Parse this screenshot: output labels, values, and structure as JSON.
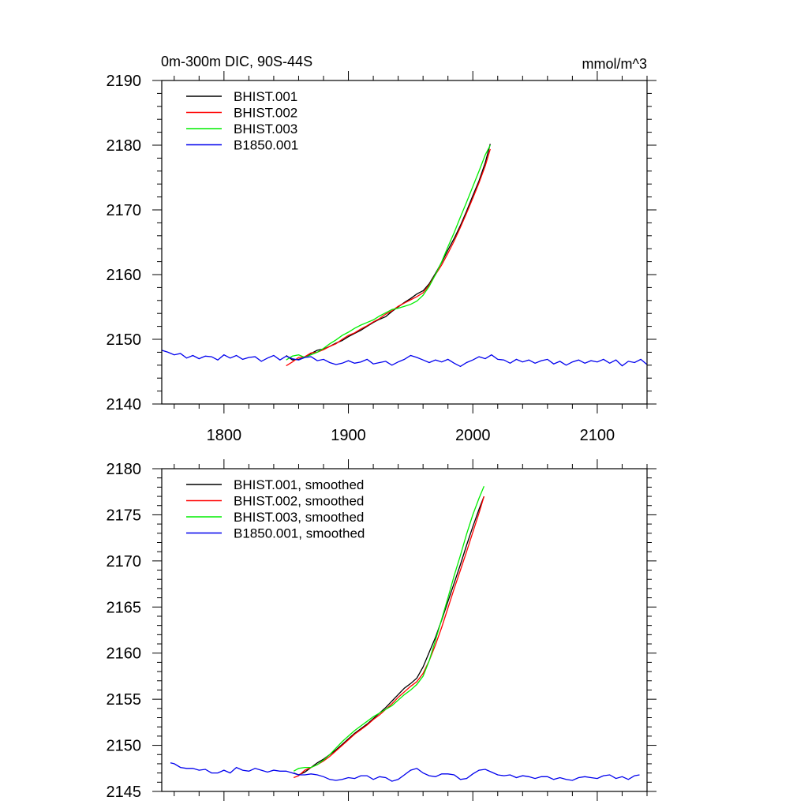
{
  "figure": {
    "left_title": "0m-300m DIC, 90S-44S",
    "right_title": "mmol/m^3"
  },
  "chart_data": [
    {
      "type": "line",
      "title": "0m-300m DIC, 90S-44S",
      "units": "mmol/m^3",
      "xlim": [
        1750,
        2140
      ],
      "ylim": [
        2140,
        2190
      ],
      "xticks": [
        1800,
        1900,
        2000,
        2100
      ],
      "yticks": [
        2140,
        2150,
        2160,
        2170,
        2180,
        2190
      ],
      "grid": false,
      "legend": "top-left",
      "series": [
        {
          "name": "BHIST.001",
          "color": "#000000",
          "x": [
            1850,
            1855,
            1860,
            1865,
            1870,
            1875,
            1880,
            1885,
            1890,
            1895,
            1900,
            1905,
            1910,
            1915,
            1920,
            1925,
            1930,
            1935,
            1940,
            1945,
            1950,
            1955,
            1960,
            1965,
            1970,
            1975,
            1980,
            1985,
            1990,
            1995,
            2000,
            2005,
            2010,
            2014
          ],
          "y": [
            2147.5,
            2146.8,
            2146.9,
            2147.2,
            2147.8,
            2148.3,
            2148.5,
            2148.9,
            2149.4,
            2149.8,
            2150.4,
            2150.9,
            2151.4,
            2152.0,
            2152.6,
            2153.1,
            2153.5,
            2154.3,
            2155.0,
            2155.7,
            2156.3,
            2157.0,
            2157.5,
            2158.6,
            2160.2,
            2161.9,
            2163.8,
            2165.6,
            2167.6,
            2169.8,
            2172.2,
            2174.5,
            2177.3,
            2180.2
          ]
        },
        {
          "name": "BHIST.002",
          "color": "#ff0000",
          "x": [
            1850,
            1855,
            1860,
            1865,
            1870,
            1875,
            1880,
            1885,
            1890,
            1895,
            1900,
            1905,
            1910,
            1915,
            1920,
            1925,
            1930,
            1935,
            1940,
            1945,
            1950,
            1955,
            1960,
            1965,
            1970,
            1975,
            1980,
            1985,
            1990,
            1995,
            2000,
            2005,
            2010,
            2014
          ],
          "y": [
            2145.9,
            2146.5,
            2147.2,
            2147.3,
            2147.9,
            2148.0,
            2148.4,
            2148.9,
            2149.3,
            2150.0,
            2150.6,
            2151.0,
            2151.6,
            2152.1,
            2152.7,
            2153.2,
            2153.9,
            2154.4,
            2155.1,
            2155.6,
            2156.1,
            2156.6,
            2157.2,
            2158.4,
            2160.0,
            2161.5,
            2163.3,
            2165.2,
            2167.3,
            2169.5,
            2171.8,
            2174.2,
            2176.8,
            2179.4
          ]
        },
        {
          "name": "BHIST.003",
          "color": "#00ee00",
          "x": [
            1850,
            1855,
            1860,
            1865,
            1870,
            1875,
            1880,
            1885,
            1890,
            1895,
            1900,
            1905,
            1910,
            1915,
            1920,
            1925,
            1930,
            1935,
            1940,
            1945,
            1950,
            1955,
            1960,
            1965,
            1970,
            1975,
            1980,
            1985,
            1990,
            1995,
            2000,
            2005,
            2010,
            2014
          ],
          "y": [
            2146.8,
            2147.4,
            2147.6,
            2147.2,
            2147.6,
            2148.0,
            2148.6,
            2149.3,
            2149.9,
            2150.6,
            2151.1,
            2151.7,
            2152.2,
            2152.6,
            2153.0,
            2153.6,
            2154.1,
            2154.6,
            2154.8,
            2155.1,
            2155.4,
            2155.9,
            2156.8,
            2158.2,
            2160.0,
            2162.0,
            2164.3,
            2166.5,
            2168.9,
            2171.2,
            2173.6,
            2176.0,
            2178.5,
            2180.0
          ]
        },
        {
          "name": "B1850.001",
          "color": "#0000ee",
          "x": [
            1750,
            1755,
            1760,
            1765,
            1770,
            1775,
            1780,
            1785,
            1790,
            1795,
            1800,
            1805,
            1810,
            1815,
            1820,
            1825,
            1830,
            1835,
            1840,
            1845,
            1850,
            1855,
            1860,
            1865,
            1870,
            1875,
            1880,
            1885,
            1890,
            1895,
            1900,
            1905,
            1910,
            1915,
            1920,
            1925,
            1930,
            1935,
            1940,
            1945,
            1950,
            1955,
            1960,
            1965,
            1970,
            1975,
            1980,
            1985,
            1990,
            1995,
            2000,
            2005,
            2010,
            2015,
            2020,
            2025,
            2030,
            2035,
            2040,
            2045,
            2050,
            2055,
            2060,
            2065,
            2070,
            2075,
            2080,
            2085,
            2090,
            2095,
            2100,
            2105,
            2110,
            2115,
            2120,
            2125,
            2130,
            2135,
            2140
          ],
          "y": [
            2148.3,
            2148.0,
            2147.6,
            2147.8,
            2147.1,
            2147.5,
            2147.0,
            2147.4,
            2147.3,
            2146.8,
            2147.6,
            2147.1,
            2147.5,
            2146.9,
            2147.2,
            2147.3,
            2146.6,
            2147.1,
            2147.5,
            2146.8,
            2147.4,
            2147.0,
            2146.8,
            2147.2,
            2147.3,
            2146.7,
            2146.9,
            2146.4,
            2146.1,
            2146.3,
            2146.7,
            2146.3,
            2146.5,
            2146.9,
            2146.2,
            2146.4,
            2146.6,
            2146.0,
            2146.5,
            2146.9,
            2147.5,
            2147.2,
            2146.8,
            2146.4,
            2146.8,
            2146.5,
            2146.9,
            2146.3,
            2145.8,
            2146.4,
            2146.8,
            2147.3,
            2147.0,
            2147.6,
            2146.9,
            2146.8,
            2146.3,
            2146.9,
            2146.5,
            2146.8,
            2146.3,
            2146.7,
            2146.9,
            2146.2,
            2146.6,
            2146.0,
            2146.5,
            2146.8,
            2146.3,
            2146.7,
            2146.5,
            2146.9,
            2146.3,
            2146.8,
            2145.9,
            2146.6,
            2146.4,
            2146.9,
            2146.1
          ]
        }
      ]
    },
    {
      "type": "line",
      "xlim": [
        1750,
        2140
      ],
      "ylim": [
        2145,
        2180
      ],
      "xticks": [
        1800,
        1900,
        2000,
        2100
      ],
      "yticks": [
        2145,
        2150,
        2155,
        2160,
        2165,
        2170,
        2175,
        2180
      ],
      "grid": false,
      "legend": "top-left",
      "series": [
        {
          "name": "BHIST.001, smoothed",
          "color": "#000000",
          "x": [
            1856,
            1860,
            1865,
            1870,
            1875,
            1880,
            1885,
            1890,
            1895,
            1900,
            1905,
            1910,
            1915,
            1920,
            1925,
            1930,
            1935,
            1940,
            1945,
            1950,
            1955,
            1960,
            1965,
            1970,
            1975,
            1980,
            1985,
            1990,
            1995,
            2000,
            2005,
            2009
          ],
          "y": [
            2147.0,
            2146.8,
            2147.1,
            2147.6,
            2148.1,
            2148.5,
            2149.0,
            2149.5,
            2150.1,
            2150.7,
            2151.3,
            2151.8,
            2152.3,
            2152.9,
            2153.5,
            2154.1,
            2154.8,
            2155.5,
            2156.2,
            2156.7,
            2157.3,
            2158.5,
            2160.1,
            2161.7,
            2163.6,
            2165.6,
            2167.6,
            2169.6,
            2171.7,
            2173.7,
            2175.6,
            2177.0
          ]
        },
        {
          "name": "BHIST.002, smoothed",
          "color": "#ff0000",
          "x": [
            1856,
            1860,
            1865,
            1870,
            1875,
            1880,
            1885,
            1890,
            1895,
            1900,
            1905,
            1910,
            1915,
            1920,
            1925,
            1930,
            1935,
            1940,
            1945,
            1950,
            1955,
            1960,
            1965,
            1970,
            1975,
            1980,
            1985,
            1990,
            1995,
            2000,
            2005,
            2009
          ],
          "y": [
            2146.5,
            2146.7,
            2147.3,
            2147.6,
            2147.9,
            2148.3,
            2148.8,
            2149.4,
            2150.0,
            2150.6,
            2151.2,
            2151.7,
            2152.2,
            2152.8,
            2153.3,
            2153.9,
            2154.5,
            2155.2,
            2155.8,
            2156.4,
            2156.9,
            2157.8,
            2159.2,
            2160.9,
            2162.8,
            2164.9,
            2167.0,
            2169.0,
            2171.0,
            2173.1,
            2175.2,
            2177.0
          ]
        },
        {
          "name": "BHIST.003, smoothed",
          "color": "#00ee00",
          "x": [
            1856,
            1860,
            1865,
            1870,
            1875,
            1880,
            1885,
            1890,
            1895,
            1900,
            1905,
            1910,
            1915,
            1920,
            1925,
            1930,
            1935,
            1940,
            1945,
            1950,
            1955,
            1960,
            1965,
            1970,
            1975,
            1980,
            1985,
            1990,
            1995,
            2000,
            2005,
            2009
          ],
          "y": [
            2147.2,
            2147.5,
            2147.6,
            2147.6,
            2147.9,
            2148.4,
            2149.0,
            2149.7,
            2150.4,
            2151.0,
            2151.6,
            2152.1,
            2152.6,
            2153.1,
            2153.5,
            2153.9,
            2154.3,
            2154.9,
            2155.5,
            2156.0,
            2156.6,
            2157.5,
            2159.2,
            2161.4,
            2163.7,
            2166.0,
            2168.4,
            2170.6,
            2172.9,
            2175.0,
            2176.8,
            2178.1
          ]
        },
        {
          "name": "B1850.001, smoothed",
          "color": "#0000ee",
          "x": [
            1757,
            1760,
            1765,
            1770,
            1775,
            1780,
            1785,
            1790,
            1795,
            1800,
            1805,
            1810,
            1815,
            1820,
            1825,
            1830,
            1835,
            1840,
            1845,
            1850,
            1855,
            1860,
            1865,
            1870,
            1875,
            1880,
            1885,
            1890,
            1895,
            1900,
            1905,
            1910,
            1915,
            1920,
            1925,
            1930,
            1935,
            1940,
            1945,
            1950,
            1955,
            1960,
            1965,
            1970,
            1975,
            1980,
            1985,
            1990,
            1995,
            2000,
            2005,
            2010,
            2015,
            2020,
            2025,
            2030,
            2035,
            2040,
            2045,
            2050,
            2055,
            2060,
            2065,
            2070,
            2075,
            2080,
            2085,
            2090,
            2095,
            2100,
            2105,
            2110,
            2115,
            2120,
            2125,
            2130,
            2134
          ],
          "y": [
            2148.1,
            2148.0,
            2147.6,
            2147.5,
            2147.5,
            2147.3,
            2147.4,
            2147.0,
            2147.0,
            2147.3,
            2147.0,
            2147.6,
            2147.3,
            2147.2,
            2147.5,
            2147.3,
            2147.1,
            2147.3,
            2147.2,
            2147.2,
            2147.0,
            2146.8,
            2146.8,
            2146.9,
            2146.8,
            2146.6,
            2146.3,
            2146.2,
            2146.3,
            2146.5,
            2146.4,
            2146.7,
            2146.7,
            2146.3,
            2146.6,
            2146.5,
            2146.1,
            2146.3,
            2146.8,
            2147.3,
            2147.5,
            2147.0,
            2146.7,
            2146.6,
            2146.9,
            2146.9,
            2146.8,
            2146.3,
            2146.4,
            2146.9,
            2147.3,
            2147.4,
            2147.1,
            2146.8,
            2146.7,
            2146.8,
            2146.5,
            2146.7,
            2146.6,
            2146.4,
            2146.6,
            2146.6,
            2146.3,
            2146.5,
            2146.3,
            2146.2,
            2146.5,
            2146.6,
            2146.5,
            2146.4,
            2146.7,
            2146.8,
            2146.4,
            2146.6,
            2146.3,
            2146.7,
            2146.8
          ]
        }
      ]
    }
  ]
}
